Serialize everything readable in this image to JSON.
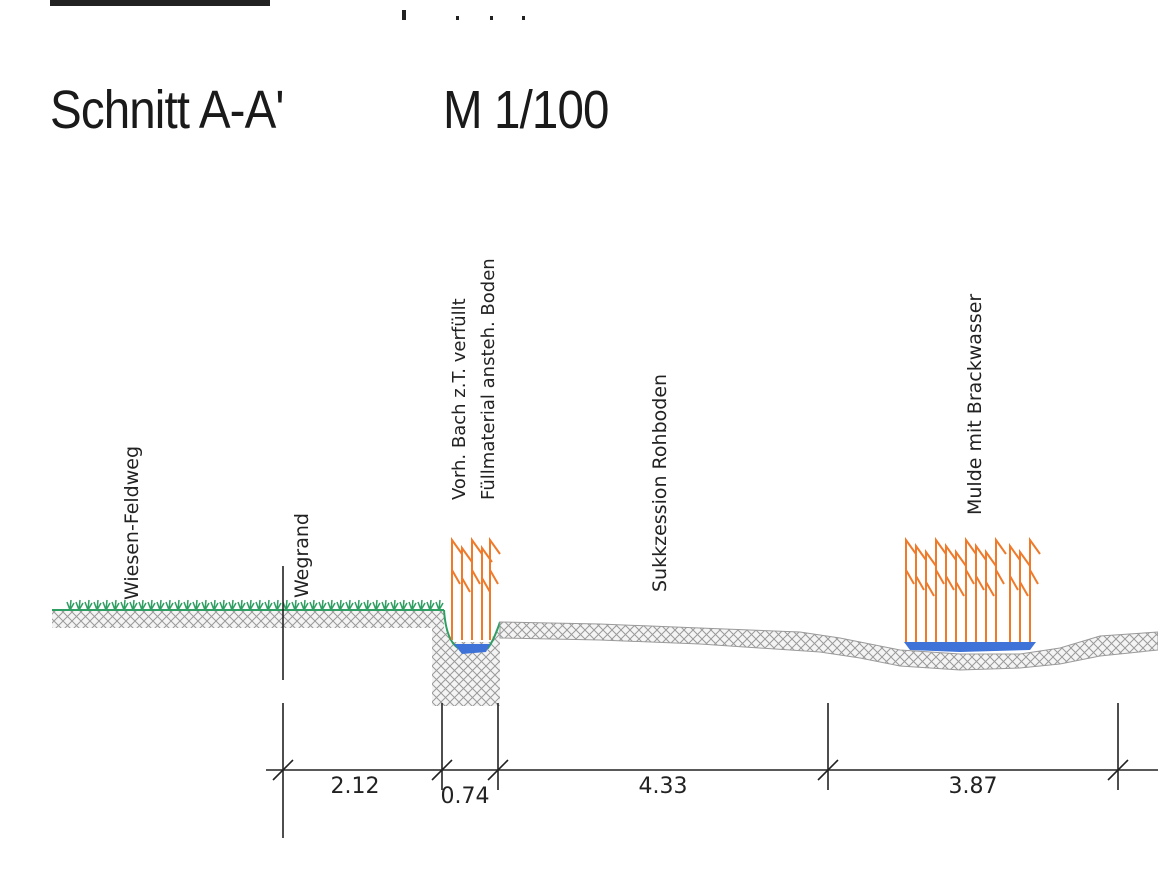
{
  "header": {
    "section_title": "Schnitt  A-A'",
    "scale": "M 1/100"
  },
  "labels": {
    "meadow_path": "Wiesen-Feldweg",
    "path_edge": "Wegrand",
    "stream_line1": "Vorh. Bach  z.T. verfüllt",
    "stream_line2": "Füllmaterial  ansteh. Boden",
    "succession": "Sukkzession  Rohboden",
    "hollow": "Mulde  mit  Brackwasser"
  },
  "dimensions": [
    "2.12",
    "0.74",
    "4.33",
    "3.87"
  ],
  "colors": {
    "grass": "#2e9e62",
    "reed": "#ee7a2a",
    "water": "#3f73d8",
    "soil_hatch": "#9a9a9a",
    "line": "#222222"
  }
}
